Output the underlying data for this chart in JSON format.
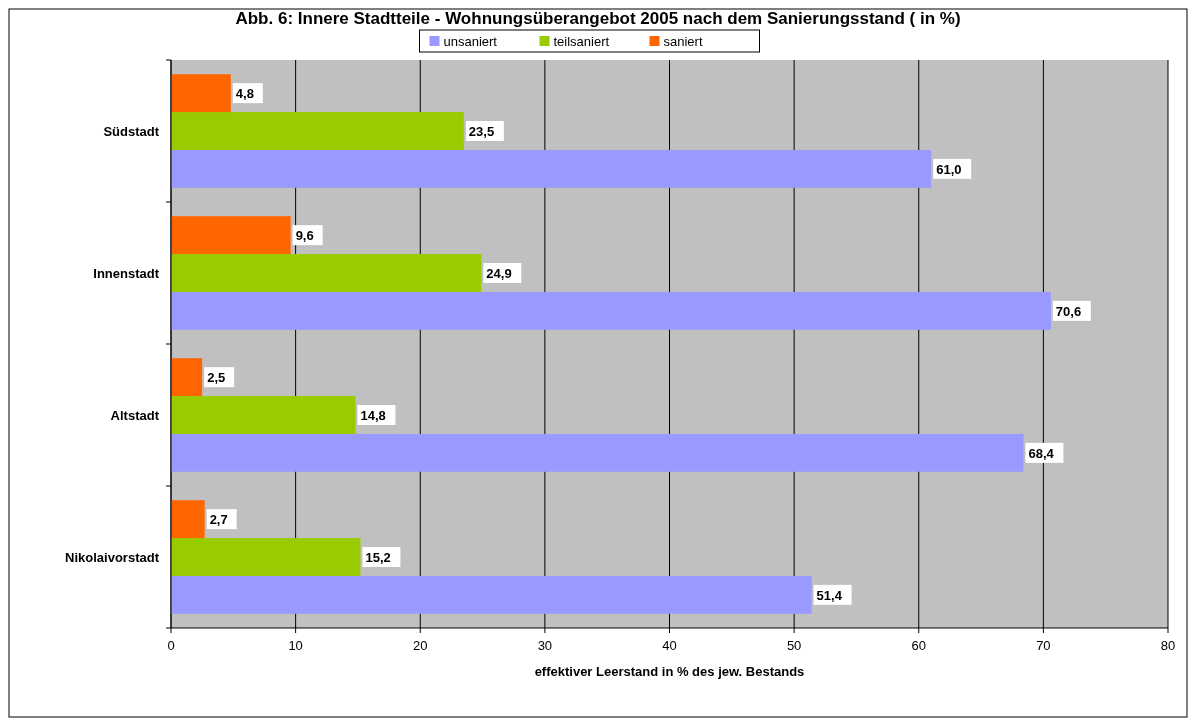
{
  "chart_data": {
    "type": "bar",
    "orientation": "horizontal",
    "title": "Abb. 6: Innere Stadtteile - Wohnungsüberangebot 2005 nach dem Sanierungsstand ( in %)",
    "xlabel": "effektiver Leerstand in % des jew. Bestands",
    "categories": [
      "Südstadt",
      "Innenstadt",
      "Altstadt",
      "Nikolaivorstadt"
    ],
    "series": [
      {
        "name": "unsaniert",
        "color": "#9999ff",
        "values": [
          61.0,
          70.6,
          68.4,
          51.4
        ],
        "value_labels": [
          "61,0",
          "70,6",
          "68,4",
          "51,4"
        ]
      },
      {
        "name": "teilsaniert",
        "color": "#99cc00",
        "values": [
          23.5,
          24.9,
          14.8,
          15.2
        ],
        "value_labels": [
          "23,5",
          "24,9",
          "14,8",
          "15,2"
        ]
      },
      {
        "name": "saniert",
        "color": "#ff6600",
        "values": [
          4.8,
          9.6,
          2.5,
          2.7
        ],
        "value_labels": [
          "4,8",
          "9,6",
          "2,5",
          "2,7"
        ]
      }
    ],
    "xlim": [
      0,
      80
    ],
    "xticks": [
      0,
      10,
      20,
      30,
      40,
      50,
      60,
      70,
      80
    ],
    "grid": "x",
    "legend": "top"
  }
}
